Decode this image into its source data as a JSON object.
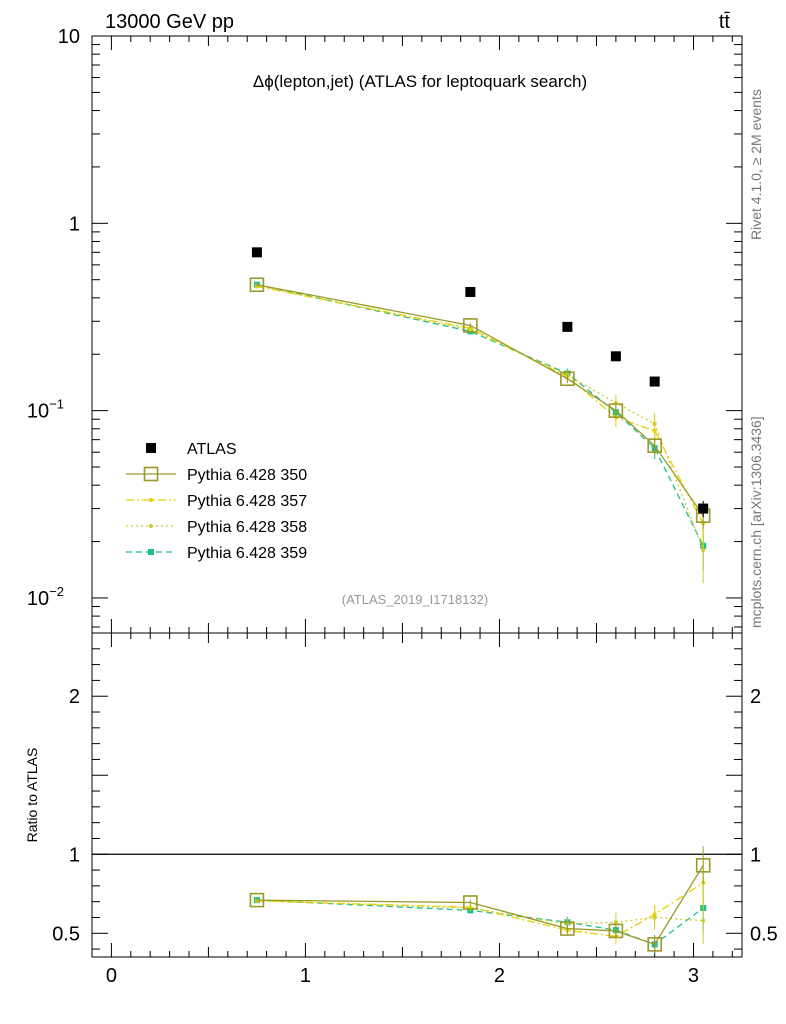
{
  "header": {
    "energy_label": "13000 GeV pp",
    "process_label": "tt̄"
  },
  "side_labels": {
    "rivet": "Rivet 4.1.0, ≥ 2M events",
    "source": "mcplots.cern.ch [arXiv:1306.3436]"
  },
  "chart_data": [
    {
      "type": "scatter",
      "panel": "main",
      "title": "Δϕ(lepton,jet) (ATLAS for leptoquark search)",
      "analysis_label": "(ATLAS_2019_I1718132)",
      "yscale": "log",
      "ylim": [
        0.0065,
        10
      ],
      "xlim": [
        -0.1,
        3.25
      ],
      "y_ticks": [
        {
          "value": 10,
          "label": "10"
        },
        {
          "value": 1,
          "label": "1"
        },
        {
          "value": 0.1,
          "label": "10",
          "exp": "−1"
        },
        {
          "value": 0.01,
          "label": "10",
          "exp": "−2"
        }
      ],
      "x": [
        0.75,
        1.85,
        2.35,
        2.6,
        2.8,
        3.05
      ],
      "legend": {
        "position": "left-middle",
        "entries": [
          {
            "label": "ATLAS",
            "marker": "filled-square",
            "color": "#000000",
            "dash": "none"
          },
          {
            "label": "Pythia 6.428 350",
            "marker": "open-square",
            "color": "#9a9a2a",
            "dash": "solid"
          },
          {
            "label": "Pythia 6.428 357",
            "marker": "small-dot",
            "color": "#e6d200",
            "dash": "dashdot"
          },
          {
            "label": "Pythia 6.428 358",
            "marker": "small-dot",
            "color": "#cccc33",
            "dash": "dotted"
          },
          {
            "label": "Pythia 6.428 359",
            "marker": "small-square",
            "color": "#1fbf88",
            "dash": "dashed"
          }
        ]
      },
      "series": [
        {
          "name": "ATLAS",
          "values": [
            0.7,
            0.43,
            0.28,
            0.195,
            0.143,
            0.03
          ],
          "errors": [
            0,
            0,
            0,
            0,
            0,
            0.003
          ]
        },
        {
          "name": "Pythia 6.428 350",
          "values": [
            0.47,
            0.285,
            0.148,
            0.1,
            0.065,
            0.0275
          ],
          "errors": [
            0.01,
            0.008,
            0.008,
            0.008,
            0.007,
            0.004
          ]
        },
        {
          "name": "Pythia 6.428 357",
          "values": [
            0.46,
            0.275,
            0.152,
            0.092,
            0.078,
            0.025
          ],
          "errors": [
            0.01,
            0.008,
            0.009,
            0.01,
            0.012,
            0.007
          ]
        },
        {
          "name": "Pythia 6.428 358",
          "values": [
            0.465,
            0.27,
            0.155,
            0.11,
            0.085,
            0.018
          ],
          "errors": [
            0.01,
            0.008,
            0.009,
            0.012,
            0.012,
            0.006
          ]
        },
        {
          "name": "Pythia 6.428 359",
          "values": [
            0.47,
            0.265,
            0.158,
            0.098,
            0.063,
            0.019
          ],
          "errors": [
            0.01,
            0.008,
            0.01,
            0.01,
            0.008,
            0.005
          ]
        }
      ]
    },
    {
      "type": "scatter",
      "panel": "ratio",
      "ylabel": "Ratio to ATLAS",
      "ylim": [
        0.35,
        2.4
      ],
      "xlim": [
        -0.1,
        3.25
      ],
      "reference_line": 1,
      "y_ticks": [
        {
          "value": 2,
          "label": "2"
        },
        {
          "value": 1,
          "label": "1"
        },
        {
          "value": 0.5,
          "label": "0.5"
        }
      ],
      "x_ticks": [
        {
          "value": 0,
          "label": "0"
        },
        {
          "value": 1,
          "label": "1"
        },
        {
          "value": 2,
          "label": "2"
        },
        {
          "value": 3,
          "label": "3"
        }
      ],
      "x": [
        0.75,
        1.85,
        2.35,
        2.6,
        2.8,
        3.05
      ],
      "series": [
        {
          "name": "Pythia 6.428 350",
          "values": [
            0.71,
            0.695,
            0.53,
            0.515,
            0.43,
            0.93
          ],
          "errors": [
            0.012,
            0.018,
            0.03,
            0.04,
            0.05,
            0.12
          ]
        },
        {
          "name": "Pythia 6.428 357",
          "values": [
            0.705,
            0.665,
            0.52,
            0.48,
            0.62,
            0.82
          ],
          "errors": [
            0.012,
            0.02,
            0.035,
            0.05,
            0.06,
            0.15
          ]
        },
        {
          "name": "Pythia 6.428 358",
          "values": [
            0.705,
            0.66,
            0.56,
            0.57,
            0.6,
            0.58
          ],
          "errors": [
            0.012,
            0.02,
            0.035,
            0.06,
            0.08,
            0.15
          ]
        },
        {
          "name": "Pythia 6.428 359",
          "values": [
            0.71,
            0.645,
            0.57,
            0.52,
            0.43,
            0.66
          ],
          "errors": [
            0.012,
            0.02,
            0.035,
            0.05,
            0.06,
            0.15
          ]
        }
      ]
    }
  ]
}
